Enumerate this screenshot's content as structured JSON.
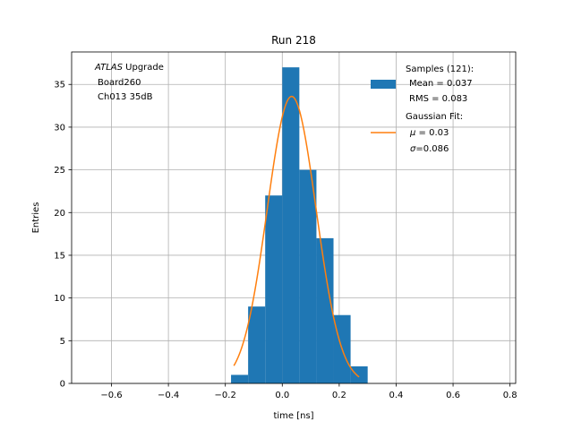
{
  "chart_data": {
    "type": "bar",
    "title": "Run 218",
    "xlabel": "time [ns]",
    "ylabel": "Entries",
    "xlim": [
      -0.74,
      0.82
    ],
    "ylim": [
      0,
      38.8
    ],
    "grid": true,
    "xticks": [
      -0.6,
      -0.4,
      -0.2,
      0.0,
      0.2,
      0.4,
      0.6,
      0.8
    ],
    "xtick_labels": [
      "−0.6",
      "−0.4",
      "−0.2",
      "0.0",
      "0.2",
      "0.4",
      "0.6",
      "0.8"
    ],
    "yticks": [
      0,
      5,
      10,
      15,
      20,
      25,
      30,
      35
    ],
    "ytick_labels": [
      "0",
      "5",
      "10",
      "15",
      "20",
      "25",
      "30",
      "35"
    ],
    "histogram": {
      "name": "Samples (121):",
      "color": "#1f77b4",
      "bin_edges": [
        -0.18,
        -0.12,
        -0.06,
        0.0,
        0.06,
        0.12,
        0.18,
        0.24,
        0.3
      ],
      "counts": [
        1,
        9,
        22,
        37,
        25,
        17,
        8,
        2
      ]
    },
    "fit": {
      "name": "Gaussian Fit:",
      "color": "#ff7f0e",
      "amplitude": 33.6,
      "mu": 0.033,
      "sigma": 0.086,
      "x_range": [
        -0.17,
        0.27
      ]
    },
    "annotation": {
      "experiment": "ATLAS",
      "experiment_suffix": " Upgrade",
      "line2": "Board260",
      "line3": "Ch013 35dB"
    },
    "legend": {
      "position": "upper right",
      "hist_label": "Samples (121):",
      "hist_mean": "Mean = 0.037",
      "hist_rms": "RMS = 0.083",
      "fit_label": "Gaussian Fit:",
      "fit_mu_symbol": "μ",
      "fit_mu_value": " = 0.03",
      "fit_sigma_symbol": "σ",
      "fit_sigma_value": "=0.086"
    }
  }
}
